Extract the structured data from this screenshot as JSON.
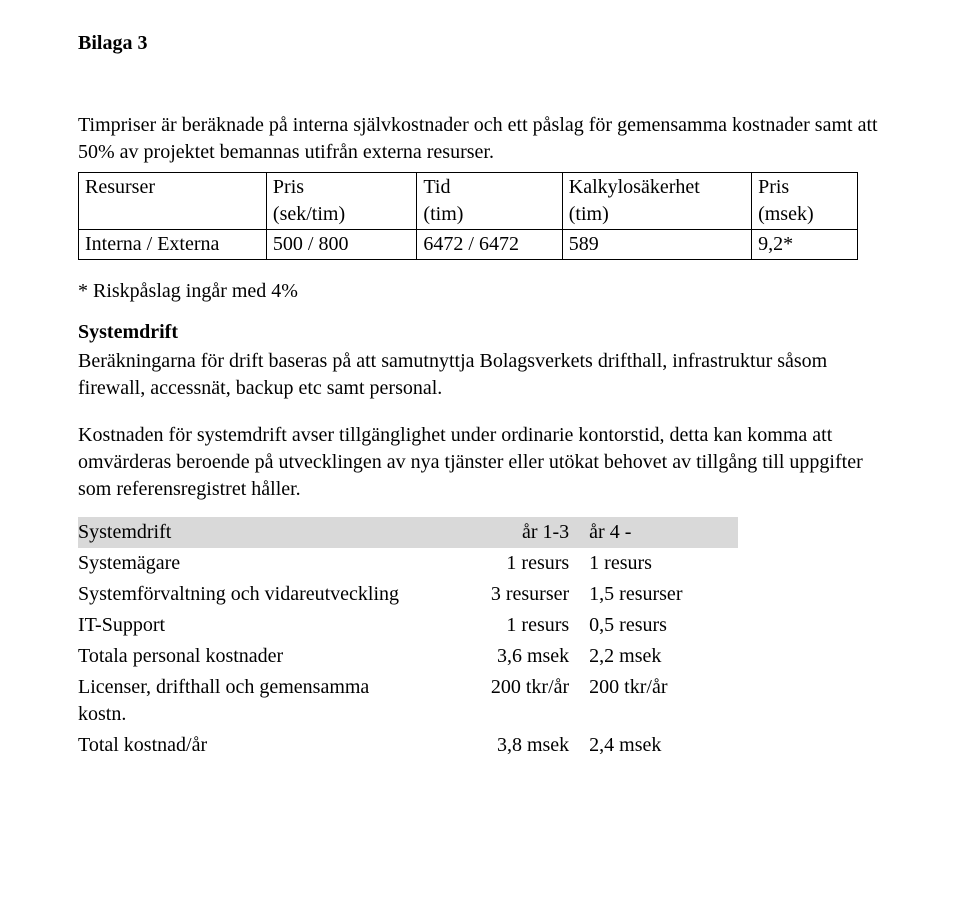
{
  "doc_label": "Bilaga 3",
  "intro_p1": "Timpriser är beräknade på interna självkostnader och ett påslag för gemensamma kostnader samt att 50% av projektet bemannas utifrån externa resurser.",
  "t1": {
    "h_resurser": "Resurser",
    "h_pris_sek": "Pris\n(sek/tim)",
    "h_tid": "Tid\n(tim)",
    "h_kalk": "Kalkylosäkerhet\n(tim)",
    "h_pris_msek": "Pris\n(msek)",
    "row_label": "Interna / Externa",
    "row_pris": "500 / 800",
    "row_tid": "6472 / 6472",
    "row_kalk": "589",
    "row_prismsek": "9,2*"
  },
  "footnote": "* Riskpåslag ingår med 4%",
  "sys_title": "Systemdrift",
  "sys_p1": "Beräkningarna för drift baseras på att samutnyttja Bolagsverkets drifthall, infrastruktur såsom firewall, accessnät, backup etc samt personal.",
  "sys_p2": "Kostnaden för systemdrift avser tillgänglighet under ordinarie kontorstid, detta kan komma att omvärderas beroende på utvecklingen av nya tjänster eller utökat behovet av tillgång till uppgifter som referensregistret håller.",
  "t2": {
    "h_title": "Systemdrift",
    "h_y13": "år 1-3",
    "h_y4": "år 4 -",
    "r1a": "Systemägare",
    "r1b": "1 resurs",
    "r1c": "1 resurs",
    "r2a": "Systemförvaltning och vidareutveckling",
    "r2b": "3 resurser",
    "r2c": "1,5 resurser",
    "r3a": "IT-Support",
    "r3b": "1 resurs",
    "r3c": "0,5 resurs",
    "r4a": "Totala personal kostnader",
    "r4b": "3,6 msek",
    "r4c": "2,2 msek",
    "r5a": "Licenser, drifthall och gemensamma kostn.",
    "r5b": "200 tkr/år",
    "r5c": "200 tkr/år",
    "r6a": "Total kostnad/år",
    "r6b": "3,8 msek",
    "r6c": "2,4 msek"
  }
}
